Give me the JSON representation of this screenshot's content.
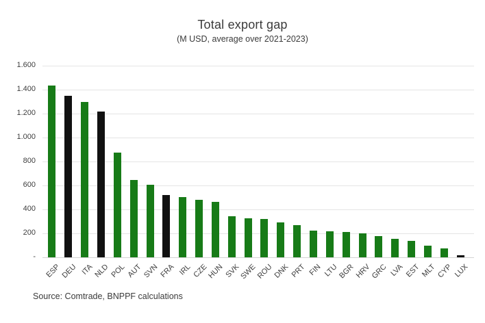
{
  "chart_data": {
    "type": "bar",
    "title": "Total export gap",
    "subtitle": "(M USD, average over 2021-2023)",
    "source": "Source: Comtrade, BNPPF calculations",
    "categories": [
      "ESP",
      "DEU",
      "ITA",
      "NLD",
      "POL",
      "AUT",
      "SVN",
      "FRA",
      "IRL",
      "CZE",
      "HUN",
      "SVK",
      "SWE",
      "ROU",
      "DNK",
      "PRT",
      "FIN",
      "LTU",
      "BGR",
      "HRV",
      "GRC",
      "LVA",
      "EST",
      "MLT",
      "CYP",
      "LUX"
    ],
    "values": [
      1435,
      1350,
      1300,
      1220,
      875,
      645,
      605,
      520,
      505,
      480,
      465,
      345,
      325,
      318,
      290,
      268,
      224,
      215,
      210,
      200,
      178,
      152,
      136,
      95,
      72,
      20
    ],
    "highlighted": [
      "DEU",
      "NLD",
      "FRA",
      "LUX"
    ],
    "colors": {
      "default_bar": "#177b17",
      "highlight_bar": "#111111",
      "gridline": "#e4e4e4",
      "axis_line": "#d2d2d2",
      "text": "#3a3a3a"
    },
    "xlabel": "",
    "ylabel": "",
    "ylim": [
      0,
      1600
    ],
    "ytick_step": 200,
    "ytick_labels_top_to_bottom": [
      "1.600",
      "1.400",
      "1.200",
      "1.000",
      "800",
      "600",
      "400",
      "200",
      "-"
    ],
    "grid": true,
    "legend": "none"
  }
}
